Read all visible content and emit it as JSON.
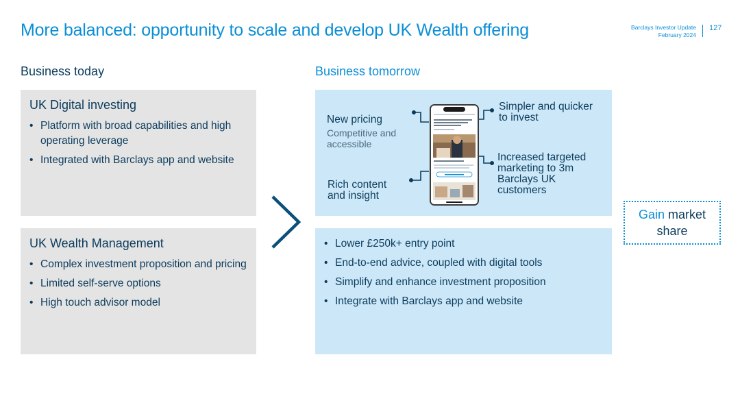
{
  "header": {
    "title": "More balanced: opportunity to scale and develop UK Wealth offering",
    "meta_line1": "Barclays Investor Update",
    "meta_line2": "February 2024",
    "page_number": "127"
  },
  "today": {
    "heading": "Business today",
    "digital": {
      "title": "UK Digital investing",
      "bullets": [
        "Platform with broad capabilities and high operating leverage",
        "Integrated with Barclays app and website"
      ]
    },
    "wealth": {
      "title": "UK Wealth Management",
      "bullets": [
        "Complex investment proposition and pricing",
        "Limited self-serve options",
        "High touch advisor model"
      ]
    }
  },
  "tomorrow": {
    "heading": "Business tomorrow",
    "features": {
      "pricing_title": "New pricing",
      "pricing_sub": "Competitive and accessible",
      "content": "Rich content and insight",
      "simpler": "Simpler and quicker to invest",
      "marketing": "Increased targeted marketing to 3m Barclays UK customers"
    },
    "bullets": [
      "Lower £250k+ entry point",
      "End-to-end advice, coupled with digital tools",
      "Simplify and enhance investment proposition",
      "Integrate with Barclays app and website"
    ]
  },
  "outcome": {
    "accent": "Gain",
    "rest_line1": " market",
    "line2": "share"
  },
  "colors": {
    "accent_blue": "#0a8fd6",
    "navy": "#0b3b5c",
    "grey_box": "#e4e4e4",
    "light_blue_box": "#cce8f8"
  }
}
